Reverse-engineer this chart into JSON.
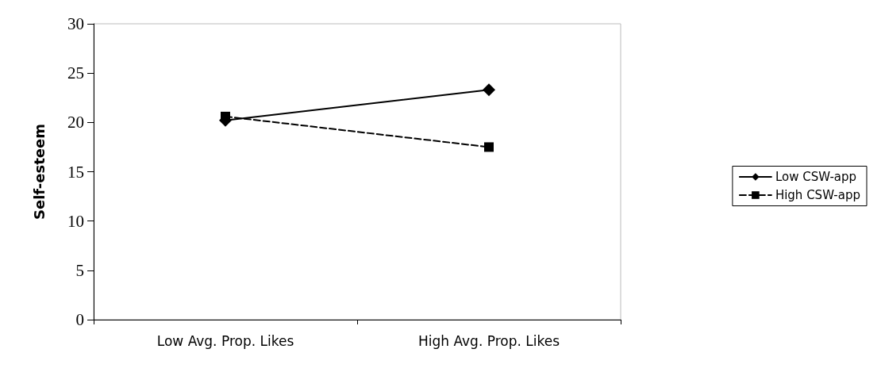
{
  "chart_data": {
    "type": "line",
    "ylabel": "Self-esteem",
    "categories": [
      "Low Avg. Prop. Likes",
      "High Avg. Prop. Likes"
    ],
    "series": [
      {
        "name": "Low CSW-app",
        "color": "#000000",
        "values": [
          20.2,
          23.3
        ],
        "marker": "diamond",
        "line_style": "solid"
      },
      {
        "name": "High CSW-app",
        "color": "#000000",
        "values": [
          20.6,
          17.5
        ],
        "marker": "square",
        "line_style": "dashed"
      }
    ],
    "ylim": [
      0,
      30
    ],
    "yticks": [
      0,
      5,
      10,
      15,
      20,
      25,
      30
    ],
    "grid": false,
    "legend": "right"
  }
}
